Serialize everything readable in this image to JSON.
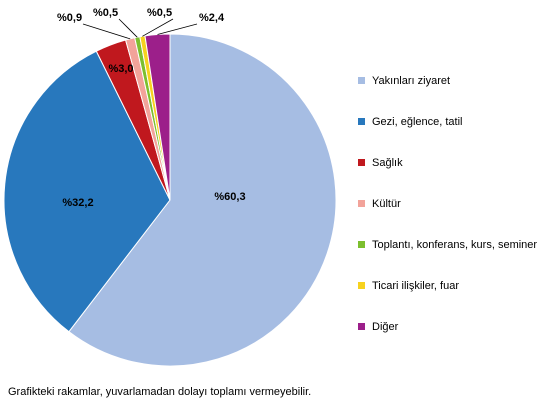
{
  "chart_data": {
    "type": "pie",
    "slices": [
      {
        "name": "Yakınları ziyaret",
        "value": 60.3,
        "label": "%60,3",
        "color": "#a6bde3"
      },
      {
        "name": "Gezi, eğlence, tatil",
        "value": 32.2,
        "label": "%32,2",
        "color": "#2878bd"
      },
      {
        "name": "Sağlık",
        "value": 3.0,
        "label": "%3,0",
        "color": "#c0181e"
      },
      {
        "name": "Kültür",
        "value": 0.9,
        "label": "%0,9",
        "color": "#f2a39a"
      },
      {
        "name": "Toplantı, konferans, kurs, seminer",
        "value": 0.5,
        "label": "%0,5",
        "color": "#7cbf2e"
      },
      {
        "name": "Ticari ilişkiler, fuar",
        "value": 0.5,
        "label": "%0,5",
        "color": "#f7d21e"
      },
      {
        "name": "Diğer",
        "value": 2.4,
        "label": "%2,4",
        "color": "#9c1f8a"
      }
    ],
    "legend_position": "right"
  },
  "footnote": "Grafikteki rakamlar, yuvarlamadan dolayı toplamı vermeyebilir."
}
